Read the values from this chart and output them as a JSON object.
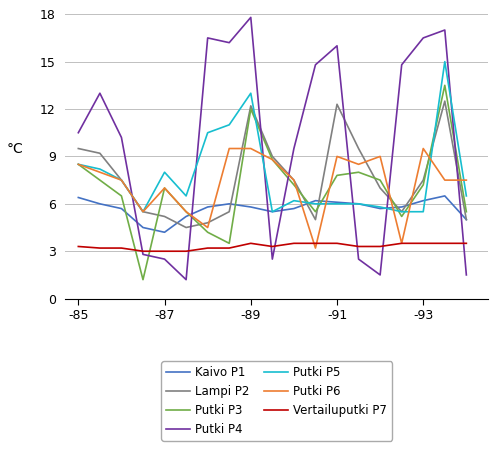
{
  "x": [
    -85,
    -85.5,
    -86,
    -86.5,
    -87,
    -87.5,
    -88,
    -88.5,
    -89,
    -89.5,
    -90,
    -90.5,
    -91,
    -91.5,
    -92,
    -92.5,
    -93,
    -93.5,
    -94
  ],
  "series": {
    "Kaivo P1": {
      "color": "#4472C4",
      "values": [
        6.4,
        6.0,
        5.7,
        4.5,
        4.2,
        5.2,
        5.8,
        6.0,
        5.8,
        5.5,
        5.7,
        6.2,
        6.1,
        6.0,
        5.7,
        5.8,
        6.2,
        6.5,
        5.0
      ]
    },
    "Lampi P2": {
      "color": "#808080",
      "values": [
        9.5,
        9.2,
        7.5,
        5.5,
        5.2,
        4.5,
        4.8,
        5.5,
        12.2,
        9.0,
        7.5,
        5.0,
        12.3,
        9.5,
        7.0,
        5.5,
        7.5,
        12.5,
        5.0
      ]
    },
    "Putki P3": {
      "color": "#70AD47",
      "values": [
        8.5,
        7.5,
        6.5,
        1.2,
        7.0,
        5.5,
        4.2,
        3.5,
        12.0,
        8.8,
        7.2,
        5.5,
        7.8,
        8.0,
        7.5,
        5.2,
        7.2,
        13.5,
        5.5
      ]
    },
    "Putki P4": {
      "color": "#7030A0",
      "values": [
        10.5,
        13.0,
        10.2,
        2.8,
        2.5,
        1.2,
        16.5,
        16.2,
        17.8,
        2.5,
        9.5,
        14.8,
        16.0,
        2.5,
        1.5,
        14.8,
        16.5,
        17.0,
        1.5
      ]
    },
    "Putki P5": {
      "color": "#17BECF",
      "values": [
        8.5,
        8.2,
        7.5,
        5.5,
        8.0,
        6.5,
        10.5,
        11.0,
        13.0,
        5.5,
        6.2,
        6.0,
        6.0,
        6.0,
        5.8,
        5.5,
        5.5,
        15.0,
        6.5
      ]
    },
    "Putki P6": {
      "color": "#ED7D31",
      "values": [
        8.5,
        8.0,
        7.5,
        5.5,
        7.0,
        5.5,
        4.5,
        9.5,
        9.5,
        8.8,
        7.5,
        3.2,
        9.0,
        8.5,
        9.0,
        3.5,
        9.5,
        7.5,
        7.5
      ]
    },
    "Vertailuputki P7": {
      "color": "#C00000",
      "values": [
        3.3,
        3.2,
        3.2,
        3.0,
        3.0,
        3.0,
        3.2,
        3.2,
        3.5,
        3.3,
        3.5,
        3.5,
        3.5,
        3.3,
        3.3,
        3.5,
        3.5,
        3.5,
        3.5
      ]
    }
  },
  "ylabel": "°C",
  "ylim": [
    0,
    18
  ],
  "xlim": [
    -84.7,
    -94.5
  ],
  "xticks": [
    -85,
    -87,
    -89,
    -91,
    -93
  ],
  "yticks": [
    0,
    3,
    6,
    9,
    12,
    15,
    18
  ],
  "background_color": "#FFFFFF",
  "grid_color": "#C0C0C0",
  "legend_order": [
    "Kaivo P1",
    "Lampi P2",
    "Putki P3",
    "Putki P4",
    "Putki P5",
    "Putki P6",
    "Vertailuputki P7"
  ]
}
